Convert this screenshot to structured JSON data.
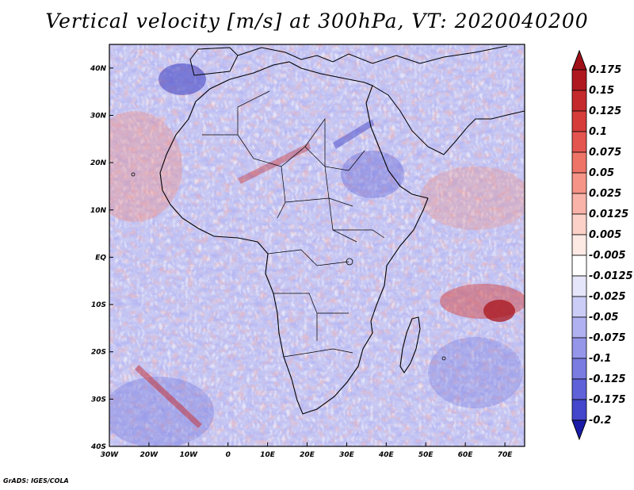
{
  "title": "Vertical velocity [m/s] at 300hPa, VT: 2020040200",
  "credit": "GrADS: IGES/COLA",
  "map": {
    "lon_range": [
      -30,
      75
    ],
    "lat_range": [
      -40,
      45
    ],
    "lon_ticks": [
      {
        "lon": -30,
        "label": "30W"
      },
      {
        "lon": -20,
        "label": "20W"
      },
      {
        "lon": -10,
        "label": "10W"
      },
      {
        "lon": 0,
        "label": "0"
      },
      {
        "lon": 10,
        "label": "10E"
      },
      {
        "lon": 20,
        "label": "20E"
      },
      {
        "lon": 30,
        "label": "30E"
      },
      {
        "lon": 40,
        "label": "40E"
      },
      {
        "lon": 50,
        "label": "50E"
      },
      {
        "lon": 60,
        "label": "60E"
      },
      {
        "lon": 70,
        "label": "70E"
      }
    ],
    "lat_ticks": [
      {
        "lat": 40,
        "label": "40N"
      },
      {
        "lat": 30,
        "label": "30N"
      },
      {
        "lat": 20,
        "label": "20N"
      },
      {
        "lat": 10,
        "label": "10N"
      },
      {
        "lat": 0,
        "label": "EQ"
      },
      {
        "lat": -10,
        "label": "10S"
      },
      {
        "lat": -20,
        "label": "20S"
      },
      {
        "lat": -30,
        "label": "30S"
      },
      {
        "lat": -40,
        "label": "40S"
      }
    ]
  },
  "colorbar": {
    "levels": [
      {
        "label": "0.175",
        "color": "#b01820"
      },
      {
        "label": "0.15",
        "color": "#c42a2c"
      },
      {
        "label": "0.125",
        "color": "#d63c3a"
      },
      {
        "label": "0.1",
        "color": "#e5554f"
      },
      {
        "label": "0.075",
        "color": "#ef7468"
      },
      {
        "label": "0.05",
        "color": "#f59487"
      },
      {
        "label": "0.025",
        "color": "#f9b3a8"
      },
      {
        "label": "0.0125",
        "color": "#fcd1c8"
      },
      {
        "label": "0.005",
        "color": "#fdeae4"
      },
      {
        "label": "-0.005",
        "color": "#ffffff"
      },
      {
        "label": "-0.0125",
        "color": "#e6e6fb"
      },
      {
        "label": "-0.025",
        "color": "#cccdf6"
      },
      {
        "label": "-0.05",
        "color": "#b0b1f0"
      },
      {
        "label": "-0.075",
        "color": "#9596ea"
      },
      {
        "label": "-0.1",
        "color": "#7a7ce2"
      },
      {
        "label": "-0.125",
        "color": "#5f61d8"
      },
      {
        "label": "-0.175",
        "color": "#4446cc"
      },
      {
        "label": "-0.2",
        "color": "#2b2ebe"
      }
    ],
    "top_color": "#a01018",
    "bottom_color": "#1a1ca8"
  }
}
